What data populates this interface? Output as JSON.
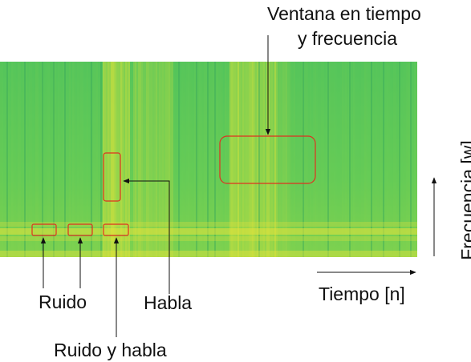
{
  "labels": {
    "window_line1": "Ventana en tiempo",
    "window_line2": "y frecuencia",
    "noise": "Ruido",
    "speech": "Habla",
    "noise_and_speech": "Ruido y habla",
    "time_axis": "Tiempo [n]",
    "frequency_axis": "Frecuencia [w]"
  },
  "colors": {
    "spectrogram_base": "#5cc95a",
    "spectrogram_bright": "#d8e23a",
    "spectrogram_dark": "#3aa85a",
    "box_stroke": "#e03020",
    "arrow": "#111111"
  }
}
